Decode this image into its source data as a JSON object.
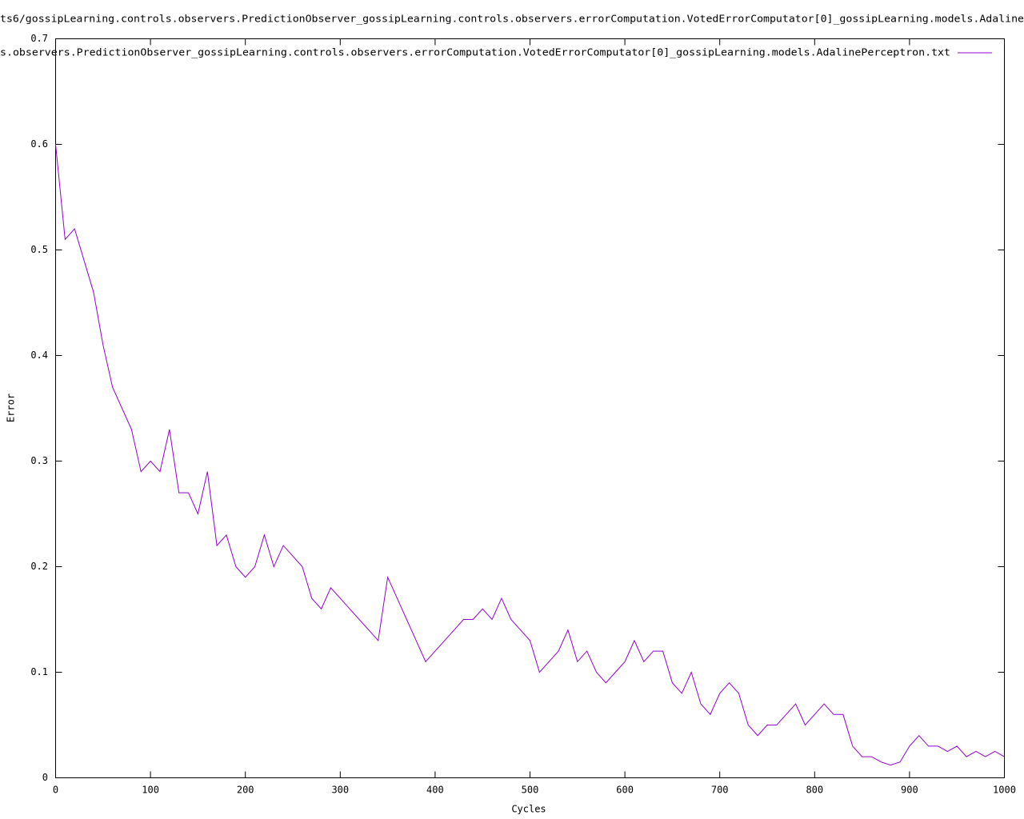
{
  "chart_data": {
    "type": "line",
    "title": "ts6/gossipLearning.controls.observers.PredictionObserver_gossipLearning.controls.observers.errorComputation.VotedErrorComputator[0]_gossipLearning.models.Adaline",
    "x_label": "Cycles",
    "y_label": "Error",
    "x": [
      0,
      10,
      20,
      30,
      40,
      50,
      60,
      70,
      80,
      90,
      100,
      110,
      120,
      130,
      140,
      150,
      160,
      170,
      180,
      190,
      200,
      210,
      220,
      230,
      240,
      250,
      260,
      270,
      280,
      290,
      300,
      310,
      320,
      330,
      340,
      350,
      360,
      370,
      380,
      390,
      400,
      410,
      420,
      430,
      440,
      450,
      460,
      470,
      480,
      490,
      500,
      510,
      520,
      530,
      540,
      550,
      560,
      570,
      580,
      590,
      600,
      610,
      620,
      630,
      640,
      650,
      660,
      670,
      680,
      690,
      700,
      710,
      720,
      730,
      740,
      750,
      760,
      770,
      780,
      790,
      800,
      810,
      820,
      830,
      840,
      850,
      860,
      870,
      880,
      890,
      900,
      910,
      920,
      930,
      940,
      950,
      960,
      970,
      980,
      990,
      1000
    ],
    "series": [
      {
        "name": "s.observers.PredictionObserver_gossipLearning.controls.observers.errorComputation.VotedErrorComputator[0]_gossipLearning.models.AdalinePerceptron.txt",
        "color": "#9400d3",
        "values": [
          0.6,
          0.51,
          0.52,
          0.49,
          0.46,
          0.41,
          0.37,
          0.35,
          0.33,
          0.29,
          0.3,
          0.29,
          0.33,
          0.27,
          0.27,
          0.25,
          0.29,
          0.22,
          0.23,
          0.2,
          0.19,
          0.2,
          0.23,
          0.2,
          0.22,
          0.21,
          0.2,
          0.17,
          0.16,
          0.18,
          0.17,
          0.16,
          0.15,
          0.14,
          0.13,
          0.19,
          0.17,
          0.15,
          0.13,
          0.11,
          0.12,
          0.13,
          0.14,
          0.15,
          0.15,
          0.16,
          0.15,
          0.17,
          0.15,
          0.14,
          0.13,
          0.1,
          0.11,
          0.12,
          0.14,
          0.11,
          0.12,
          0.1,
          0.09,
          0.1,
          0.11,
          0.13,
          0.11,
          0.12,
          0.12,
          0.09,
          0.08,
          0.1,
          0.07,
          0.06,
          0.08,
          0.09,
          0.08,
          0.05,
          0.04,
          0.05,
          0.05,
          0.06,
          0.07,
          0.05,
          0.06,
          0.07,
          0.06,
          0.06,
          0.03,
          0.02,
          0.02,
          0.015,
          0.012,
          0.015,
          0.03,
          0.04,
          0.03,
          0.03,
          0.025,
          0.03,
          0.02,
          0.025,
          0.02,
          0.025,
          0.02
        ]
      }
    ],
    "xlim": [
      0,
      1000
    ],
    "xticks": [
      0,
      100,
      200,
      300,
      400,
      500,
      600,
      700,
      800,
      900,
      1000
    ],
    "ylim": [
      0,
      0.7
    ],
    "yticks": [
      0,
      0.1,
      0.2,
      0.3,
      0.4,
      0.5,
      0.6,
      0.7
    ],
    "legend": "top-right"
  }
}
